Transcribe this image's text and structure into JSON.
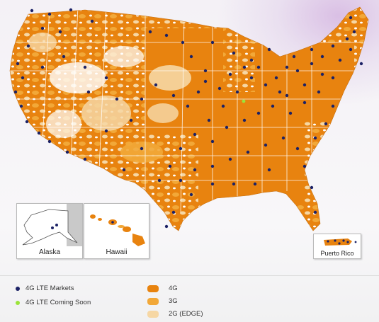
{
  "legend": {
    "lte_markets": {
      "label": "4G LTE Markets",
      "color": "#1c2266"
    },
    "lte_coming_soon": {
      "label": "4G LTE Coming Soon",
      "color": "#9be43a"
    },
    "coverage_4g": {
      "label": "4G",
      "color": "#e8830f"
    },
    "coverage_3g": {
      "label": "3G",
      "color": "#f2a838"
    },
    "coverage_2g": {
      "label": "2G (EDGE)",
      "color": "#f6d7a4"
    }
  },
  "insets": {
    "alaska": "Alaska",
    "hawaii": "Hawaii",
    "puerto_rico": "Puerto Rico"
  },
  "map_colors": {
    "background": "#ffffff",
    "state_border": "#ffffff"
  }
}
